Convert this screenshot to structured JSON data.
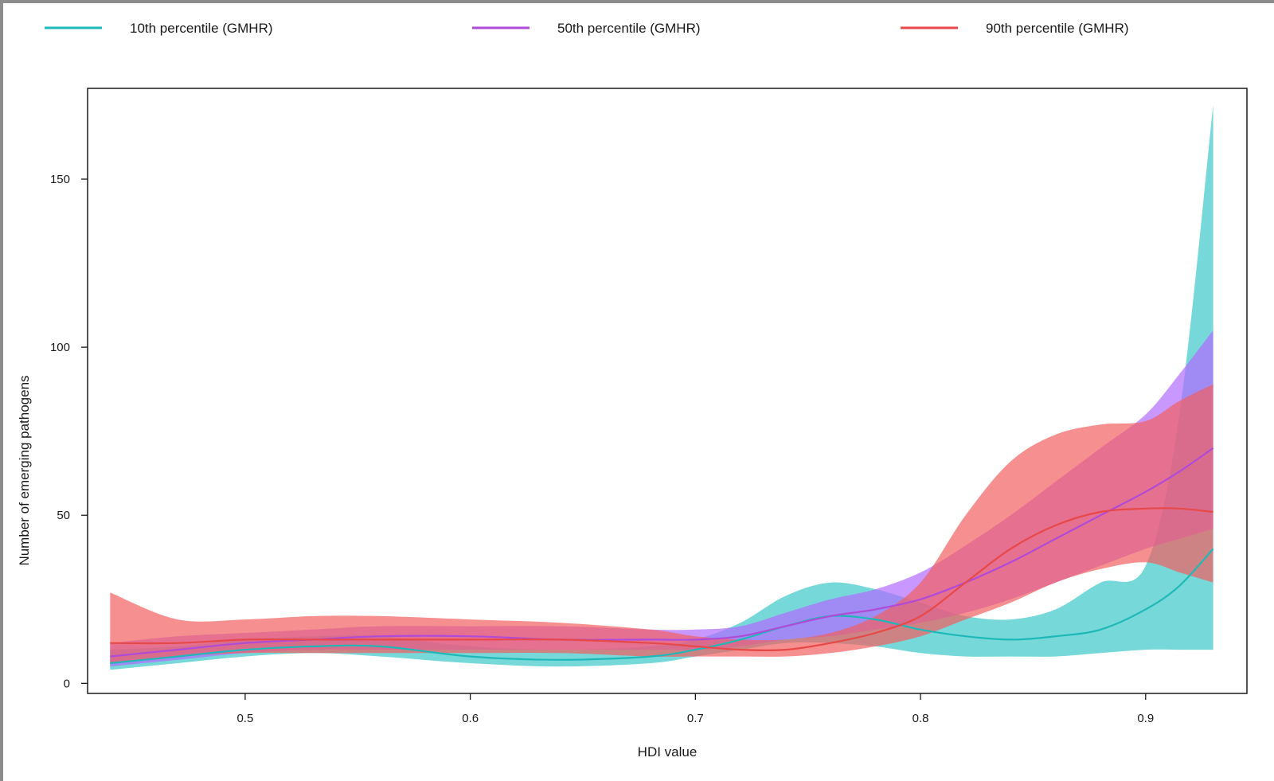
{
  "chart_data": {
    "type": "line",
    "xlabel": "HDI value",
    "ylabel": "Number of emerging pathogens",
    "xlim": [
      0.43,
      0.945
    ],
    "ylim": [
      -3,
      177
    ],
    "xticks": [
      0.5,
      0.6,
      0.7,
      0.8,
      0.9
    ],
    "yticks": [
      0,
      50,
      100,
      150
    ],
    "grid": false,
    "legend_position": "top",
    "x": [
      0.44,
      0.47,
      0.5,
      0.53,
      0.56,
      0.6,
      0.64,
      0.68,
      0.7,
      0.72,
      0.74,
      0.76,
      0.78,
      0.8,
      0.82,
      0.84,
      0.86,
      0.88,
      0.9,
      0.915,
      0.93
    ],
    "series": [
      {
        "name": "10th percentile (GMHR)",
        "color": "#1fb8b8",
        "band_color": "#3cc8c8",
        "values": [
          6,
          8,
          10,
          11,
          11,
          8,
          7,
          8,
          10,
          13,
          17,
          20,
          19,
          16,
          14,
          13,
          14,
          16,
          22,
          29,
          40
        ],
        "lower": [
          4,
          6,
          8,
          9,
          8,
          6,
          5,
          6,
          8,
          10,
          12,
          12,
          11,
          9,
          8,
          8,
          8,
          9,
          10,
          10,
          10
        ],
        "upper": [
          10,
          11,
          13,
          14,
          14,
          11,
          10,
          11,
          13,
          18,
          26,
          30,
          28,
          24,
          20,
          19,
          22,
          30,
          35,
          80,
          172
        ]
      },
      {
        "name": "50th percentile (GMHR)",
        "color": "#b04ad8",
        "band_color": "#b06bff",
        "values": [
          8,
          10,
          12,
          13,
          14,
          14,
          13,
          13,
          13,
          14,
          17,
          20,
          22,
          25,
          30,
          36,
          43,
          50,
          57,
          63,
          70
        ],
        "lower": [
          5,
          7,
          9,
          10,
          10,
          10,
          10,
          10,
          10,
          11,
          13,
          14,
          16,
          18,
          21,
          25,
          30,
          35,
          40,
          43,
          46
        ],
        "upper": [
          12,
          14,
          15,
          16,
          17,
          17,
          17,
          16,
          16,
          17,
          21,
          25,
          28,
          33,
          41,
          50,
          60,
          70,
          80,
          92,
          105
        ]
      },
      {
        "name": "90th percentile (GMHR)",
        "color": "#e84848",
        "band_color": "#f26060",
        "values": [
          12,
          12,
          13,
          13,
          13,
          13,
          13,
          12,
          11,
          10,
          10,
          12,
          15,
          20,
          30,
          40,
          47,
          51,
          52,
          52,
          51
        ],
        "lower": [
          6,
          8,
          9,
          9,
          9,
          9,
          9,
          8,
          8,
          8,
          8,
          9,
          11,
          14,
          19,
          24,
          30,
          34,
          36,
          33,
          30
        ],
        "upper": [
          27,
          19,
          19,
          20,
          20,
          19,
          18,
          16,
          14,
          13,
          13,
          15,
          20,
          30,
          50,
          66,
          74,
          77,
          78,
          84,
          89
        ]
      }
    ]
  }
}
